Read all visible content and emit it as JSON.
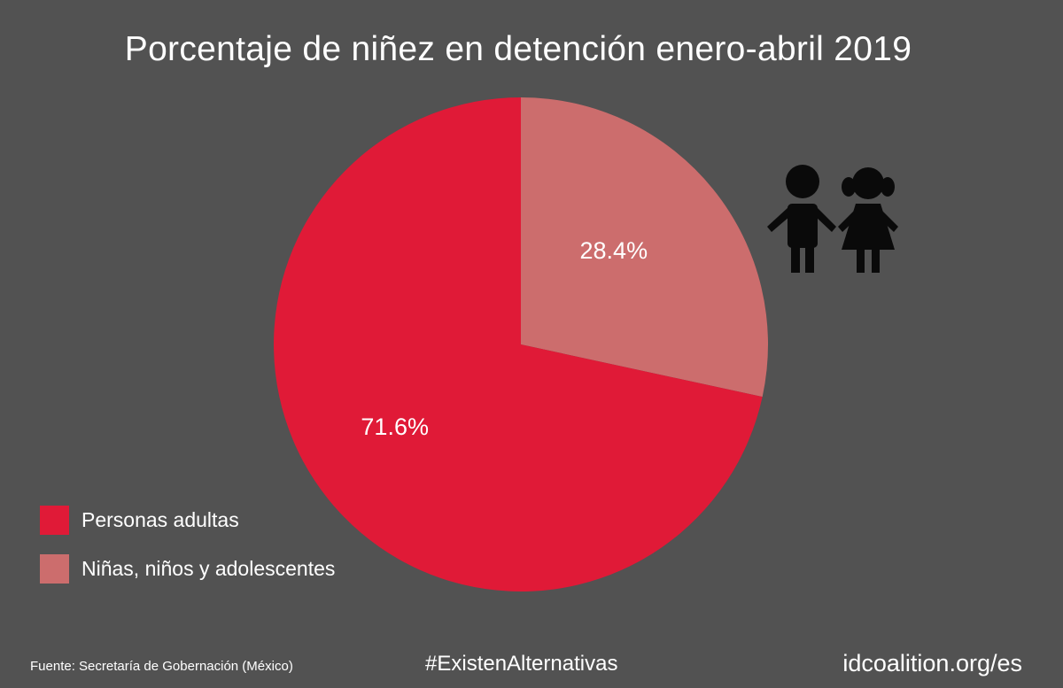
{
  "chart_data": {
    "type": "pie",
    "title": "Porcentaje de niñez en detención enero-abril 2019",
    "slices": [
      {
        "name": "Niñas, niños y adolescentes",
        "value": 28.4,
        "label": "28.4%",
        "color": "#cc6d6d"
      },
      {
        "name": "Personas adultas",
        "value": 71.6,
        "label": "71.6%",
        "color": "#e01a37"
      }
    ],
    "legend_position": "bottom-left"
  },
  "legend": [
    {
      "label": "Personas adultas",
      "color": "#e01a37"
    },
    {
      "label": "Niñas, niños y adolescentes",
      "color": "#cc6d6d"
    }
  ],
  "footer": {
    "source": "Fuente: Secretaría de Gobernación (México)",
    "hashtag": "#ExistenAlternativas",
    "website": "idcoalition.org/es"
  },
  "icons": {
    "children": "boy-and-girl-icon"
  }
}
